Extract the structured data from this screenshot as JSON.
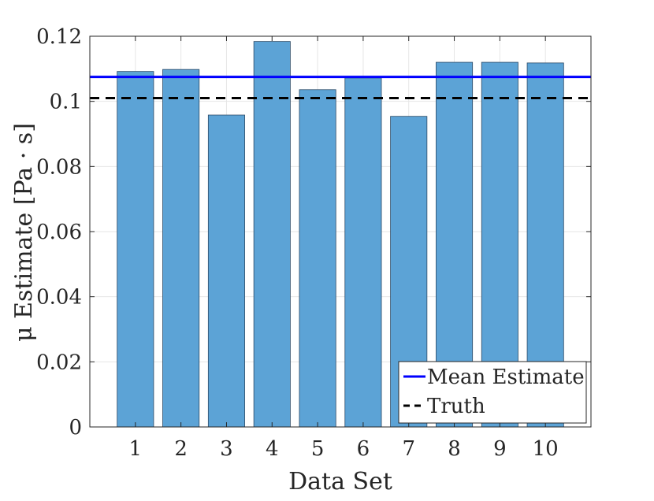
{
  "chart_data": {
    "type": "bar",
    "categories": [
      "1",
      "2",
      "3",
      "4",
      "5",
      "6",
      "7",
      "8",
      "9",
      "10"
    ],
    "values": [
      0.1092,
      0.1098,
      0.0958,
      0.1184,
      0.1036,
      0.1072,
      0.0954,
      0.112,
      0.112,
      0.1118
    ],
    "xlabel": "Data Set",
    "ylabel": "μ Estimate [Pa · s]",
    "xlim": [
      0,
      11
    ],
    "ylim": [
      0,
      0.12
    ],
    "yticks": [
      0,
      0.02,
      0.04,
      0.06,
      0.08,
      0.1,
      0.12
    ],
    "ytick_labels": [
      "0",
      "0.02",
      "0.04",
      "0.06",
      "0.08",
      "0.1",
      "0.12"
    ],
    "grid": true,
    "reference_lines": [
      {
        "name": "Mean Estimate",
        "value": 0.1075,
        "color": "#0000ff",
        "style": "solid"
      },
      {
        "name": "Truth",
        "value": 0.101,
        "color": "#000000",
        "style": "dashed"
      }
    ],
    "bar_color": "#5ca3d6",
    "legend_position": "bottom-right"
  }
}
